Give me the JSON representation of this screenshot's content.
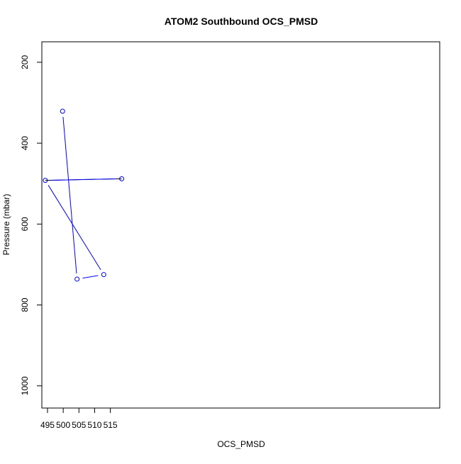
{
  "chart_data": {
    "type": "line",
    "title": "ATOM2 Southbound OCS_PMSD",
    "xlabel": "OCS_PMSD",
    "ylabel": "Pressure (mbar)",
    "xlim": [
      493.2,
      619.8
    ],
    "ylim": [
      1054.8,
      149.4
    ],
    "y_inverted": true,
    "grid": false,
    "legend": "none",
    "x_ticks": [
      495,
      500,
      505,
      510,
      515
    ],
    "y_ticks": [
      200,
      400,
      600,
      800,
      1000
    ],
    "series": [
      {
        "color": "#0000ff",
        "x": [
          499.8,
          504.4,
          512.9,
          494.3,
          518.6
        ],
        "y": [
          321,
          736,
          725,
          492,
          488
        ]
      }
    ],
    "reference_line": {
      "color": "#000000",
      "x": [
        494.3,
        518.6
      ],
      "y": [
        492,
        488
      ]
    }
  }
}
